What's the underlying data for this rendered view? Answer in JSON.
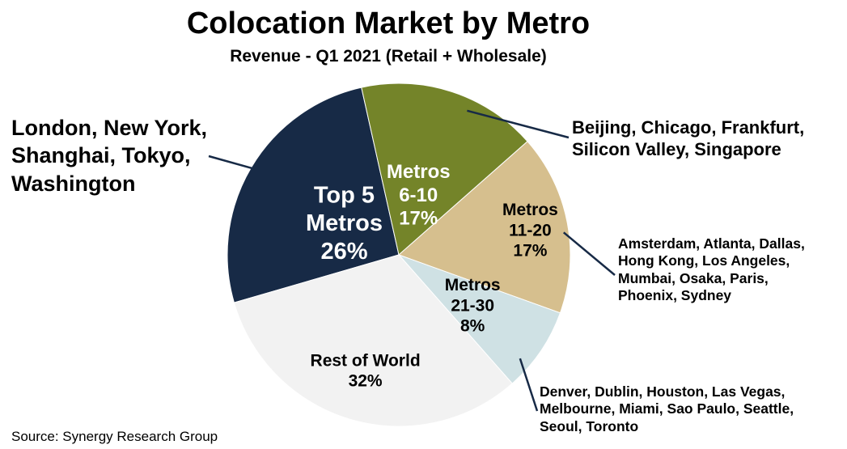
{
  "chart_data": {
    "type": "pie",
    "title": "Colocation Market by Metro",
    "subtitle": "Revenue - Q1 2021 (Retail + Wholesale)",
    "slices": [
      {
        "lines": [
          "Top 5",
          "Metros",
          "26%"
        ],
        "value": 26,
        "color": "#172a46",
        "label_color": "#ffffff",
        "font_size": 29
      },
      {
        "lines": [
          "Metros",
          "6-10",
          "17%"
        ],
        "value": 17,
        "color": "#748429",
        "label_color": "#ffffff",
        "font_size": 24
      },
      {
        "lines": [
          "Metros",
          "11-20",
          "17%"
        ],
        "value": 17,
        "color": "#d6bf8e",
        "label_color": "#000000",
        "font_size": 21
      },
      {
        "lines": [
          "Metros",
          "21-30",
          "8%"
        ],
        "value": 8,
        "color": "#cfe1e4",
        "label_color": "#000000",
        "font_size": 21
      },
      {
        "lines": [
          "Rest of World",
          "32%"
        ],
        "value": 32,
        "color": "#f2f2f2",
        "label_color": "#000000",
        "font_size": 21
      }
    ]
  },
  "annotations": [
    {
      "lines": [
        "London, New York,",
        "Shanghai, Tokyo,",
        "Washington"
      ]
    },
    {
      "lines": [
        "Beijing, Chicago, Frankfurt,",
        "Silicon Valley, Singapore"
      ]
    },
    {
      "lines": [
        "Amsterdam, Atlanta, Dallas,",
        "Hong Kong, Los Angeles,",
        "Mumbai, Osaka, Paris,",
        "Phoenix, Sydney"
      ]
    },
    {
      "lines": [
        "Denver, Dublin, Houston, Las Vegas,",
        "Melbourne, Miami, Sao Paulo, Seattle,",
        "Seoul, Toronto"
      ]
    }
  ],
  "source": "Source: Synergy Research Group"
}
